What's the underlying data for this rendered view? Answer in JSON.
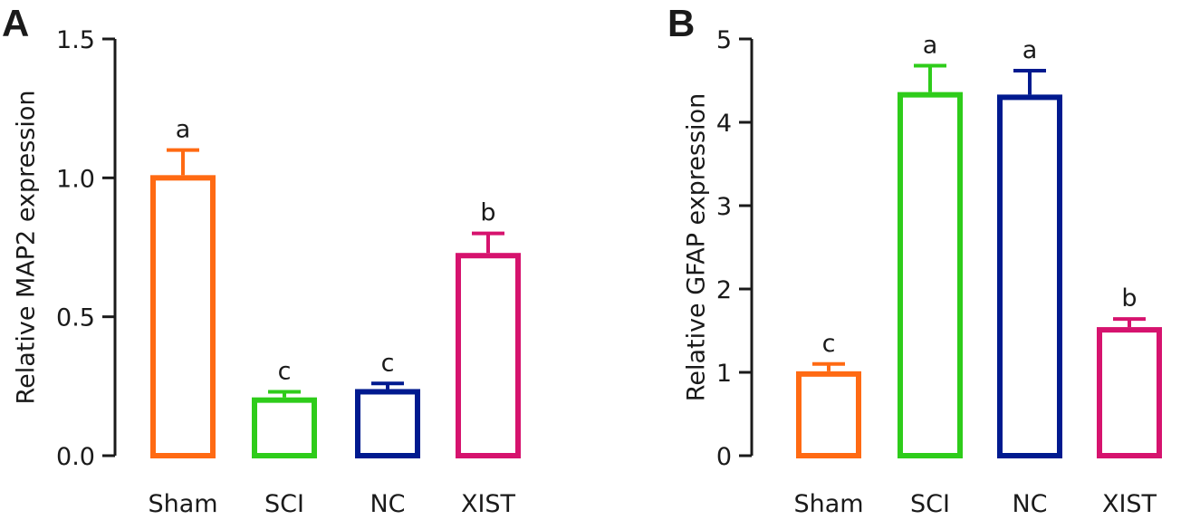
{
  "chart_data": [
    {
      "panel": "A",
      "type": "bar",
      "ylabel": "Relative MAP2 expression",
      "ylim": [
        0,
        1.5
      ],
      "yticks": [
        "0.0",
        "0.5",
        "1.0",
        "1.5"
      ],
      "ytick_values": [
        0,
        0.5,
        1.0,
        1.5
      ],
      "categories": [
        "Sham",
        "SCI",
        "NC",
        "XIST"
      ],
      "values": [
        1.0,
        0.2,
        0.23,
        0.72
      ],
      "errors": [
        0.1,
        0.03,
        0.03,
        0.08
      ],
      "significance": [
        "a",
        "c",
        "c",
        "b"
      ],
      "colors": [
        "#ff6a13",
        "#2ecc1a",
        "#001a8f",
        "#d6136e"
      ],
      "grid": false
    },
    {
      "panel": "B",
      "type": "bar",
      "ylabel": "Relative GFAP expression",
      "ylim": [
        0,
        5
      ],
      "yticks": [
        "0",
        "1",
        "2",
        "3",
        "4",
        "5"
      ],
      "ytick_values": [
        0,
        1,
        2,
        3,
        4,
        5
      ],
      "categories": [
        "Sham",
        "SCI",
        "NC",
        "XIST"
      ],
      "values": [
        0.98,
        4.33,
        4.3,
        1.51
      ],
      "errors": [
        0.12,
        0.35,
        0.32,
        0.13
      ],
      "significance": [
        "c",
        "a",
        "a",
        "b"
      ],
      "colors": [
        "#ff6a13",
        "#2ecc1a",
        "#001a8f",
        "#d6136e"
      ],
      "grid": false
    }
  ]
}
